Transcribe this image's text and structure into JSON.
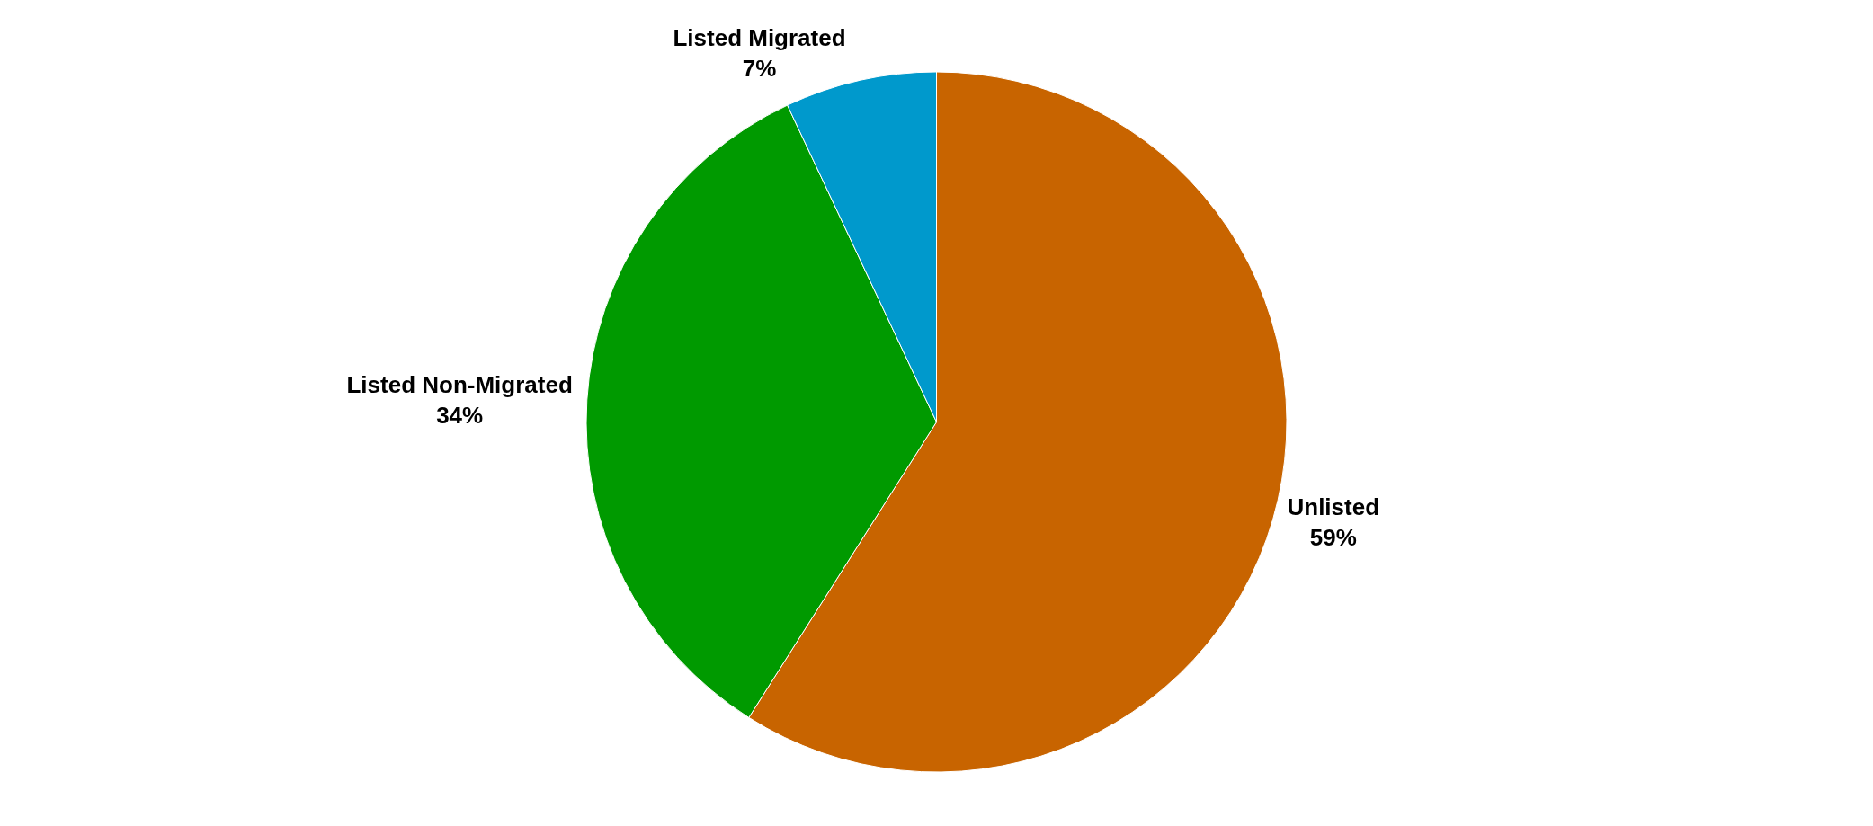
{
  "chart_data": {
    "type": "pie",
    "categories": [
      "Unlisted",
      "Listed Non-Migrated",
      "Listed Migrated"
    ],
    "values": [
      59,
      34,
      7
    ],
    "value_labels": [
      "59%",
      "34%",
      "7%"
    ],
    "colors": [
      "#c86400",
      "#009a00",
      "#0099cc"
    ],
    "legend": false
  }
}
